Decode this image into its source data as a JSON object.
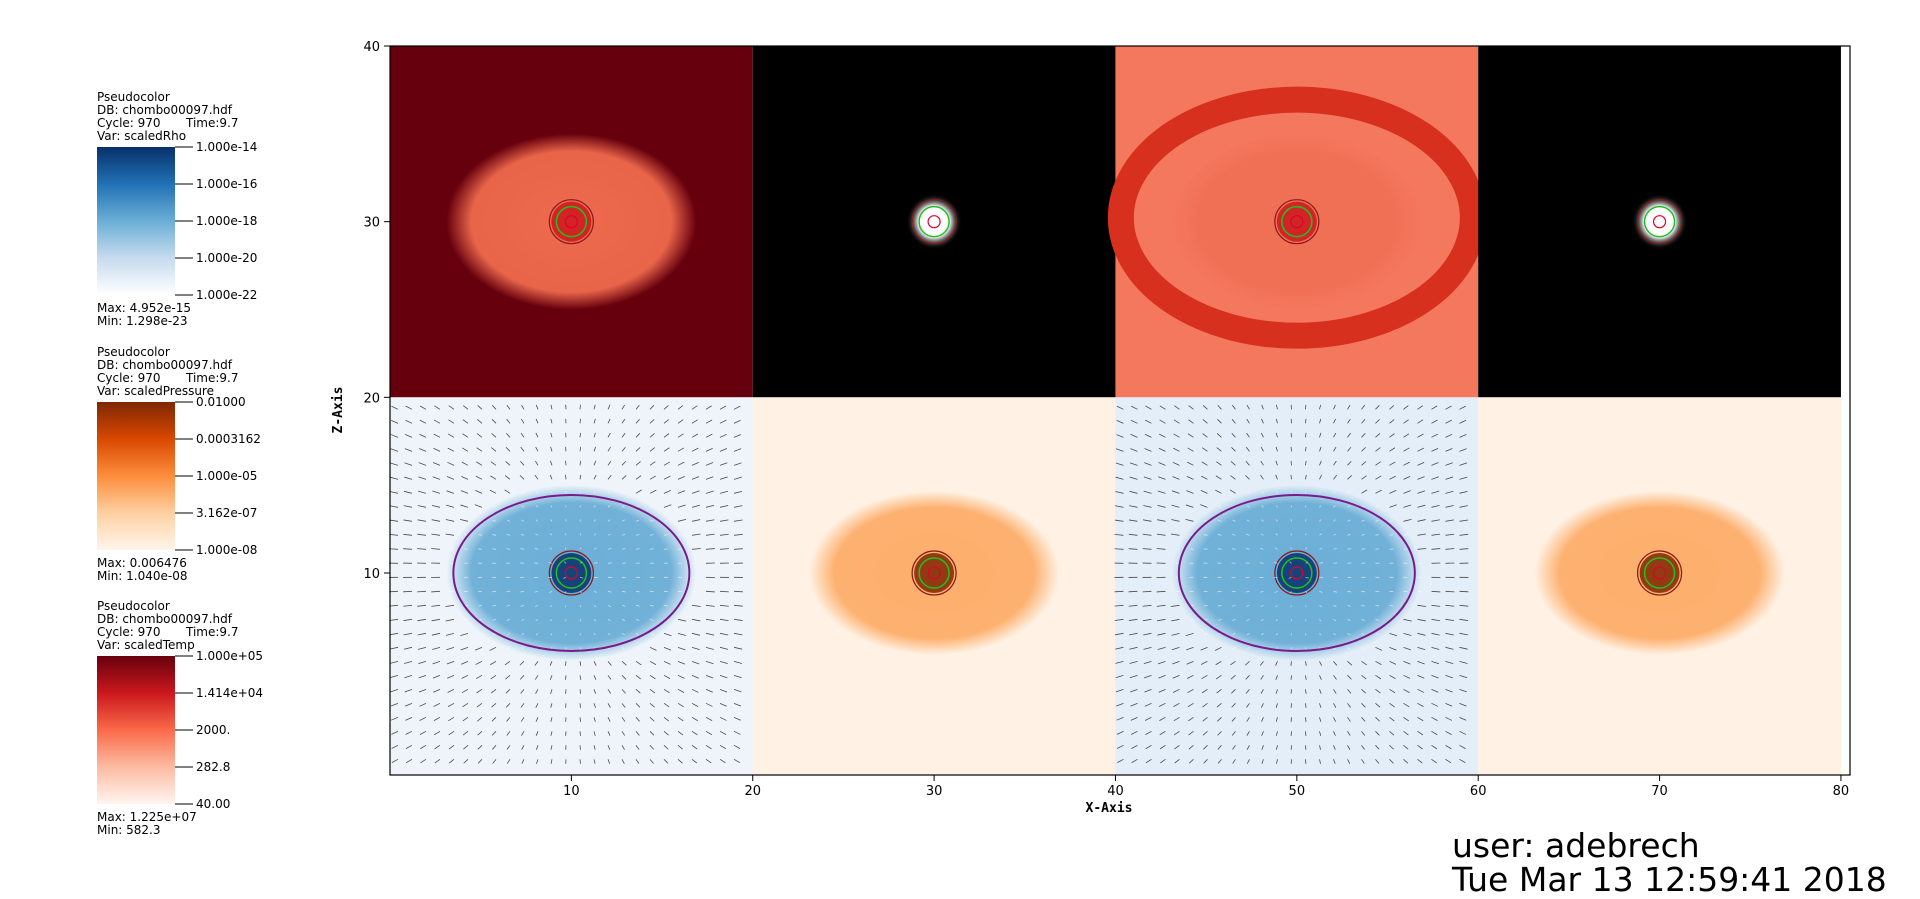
{
  "legends": [
    {
      "plot": "Pseudocolor",
      "db": "DB: chombo00097.hdf",
      "cycle": "Cycle: 970",
      "time": "Time:9.7",
      "var": "Var: scaledRho",
      "ticks": [
        "1.000e-14",
        "1.000e-16",
        "1.000e-18",
        "1.000e-20",
        "1.000e-22"
      ],
      "max": "Max:  4.952e-15",
      "min": "Min:  1.298e-23",
      "colormap": [
        "#08306b",
        "#2171b5",
        "#6baed6",
        "#c6dbef",
        "#ffffff"
      ]
    },
    {
      "plot": "Pseudocolor",
      "db": "DB: chombo00097.hdf",
      "cycle": "Cycle: 970",
      "time": "Time:9.7",
      "var": "Var: scaledPressure",
      "ticks": [
        "0.01000",
        "0.0003162",
        "1.000e-05",
        "3.162e-07",
        "1.000e-08"
      ],
      "max": "Max:  0.006476",
      "min": "Min:  1.040e-08",
      "colormap": [
        "#7f2704",
        "#d94801",
        "#fd8d3c",
        "#fdd0a2",
        "#fff5eb"
      ]
    },
    {
      "plot": "Pseudocolor",
      "db": "DB: chombo00097.hdf",
      "cycle": "Cycle: 970",
      "time": "Time:9.7",
      "var": "Var: scaledTemp",
      "ticks": [
        "1.000e+05",
        "1.414e+04",
        "2000.",
        "282.8",
        "40.00"
      ],
      "max": "Max:  1.225e+07",
      "min": "Min:  582.3",
      "colormap": [
        "#67000d",
        "#cb181d",
        "#fb6a4a",
        "#fcbba1",
        "#fff5f0"
      ]
    }
  ],
  "chart_data": {
    "type": "heatmap",
    "xlabel": "X-Axis",
    "ylabel": "Z-Axis",
    "xlim": [
      0,
      80.5
    ],
    "ylim": [
      -1.5,
      40
    ],
    "xticks": [
      10,
      20,
      30,
      40,
      50,
      60,
      70,
      80
    ],
    "yticks": [
      10,
      20,
      30,
      40
    ],
    "panels": [
      {
        "field": "scaledTemp",
        "x": [
          0,
          20
        ],
        "z": [
          20,
          40
        ],
        "background": "#67000d",
        "blob_color": "#ef6a4d",
        "center": [
          10,
          30
        ],
        "vectors": false
      },
      {
        "field": "scaledPressure-like",
        "x": [
          20,
          40
        ],
        "z": [
          20,
          40
        ],
        "background": "#000000",
        "blob_color": "#ffffff",
        "center": [
          30,
          30
        ],
        "vectors": false
      },
      {
        "field": "scaledTemp",
        "x": [
          40,
          60
        ],
        "z": [
          20,
          40
        ],
        "background": "#f4785e",
        "blob_color": "#f07055",
        "center": [
          50,
          30
        ],
        "vectors": false
      },
      {
        "field": "scaledPressure-like",
        "x": [
          60,
          80
        ],
        "z": [
          20,
          40
        ],
        "background": "#000000",
        "blob_color": "#ffffff",
        "center": [
          70,
          30
        ],
        "vectors": false
      },
      {
        "field": "scaledRho",
        "x": [
          0,
          20
        ],
        "z": [
          0,
          20
        ],
        "background": "#eef4fa",
        "blob_color": "#6baed6",
        "center": [
          10,
          10
        ],
        "vectors": true
      },
      {
        "field": "scaledPressure",
        "x": [
          20,
          40
        ],
        "z": [
          0,
          20
        ],
        "background": "#fff1e3",
        "blob_color": "#fdae6b",
        "center": [
          30,
          10
        ],
        "vectors": false
      },
      {
        "field": "scaledRho",
        "x": [
          40,
          60
        ],
        "z": [
          0,
          20
        ],
        "background": "#e4eef8",
        "blob_color": "#6baed6",
        "center": [
          50,
          10
        ],
        "vectors": true
      },
      {
        "field": "scaledPressure",
        "x": [
          60,
          80
        ],
        "z": [
          0,
          20
        ],
        "background": "#fff1e3",
        "blob_color": "#fdae6b",
        "center": [
          70,
          10
        ],
        "vectors": false
      }
    ]
  },
  "user": {
    "line1": "user: adebrech",
    "line2": "Tue Mar 13 12:59:41 2018"
  }
}
